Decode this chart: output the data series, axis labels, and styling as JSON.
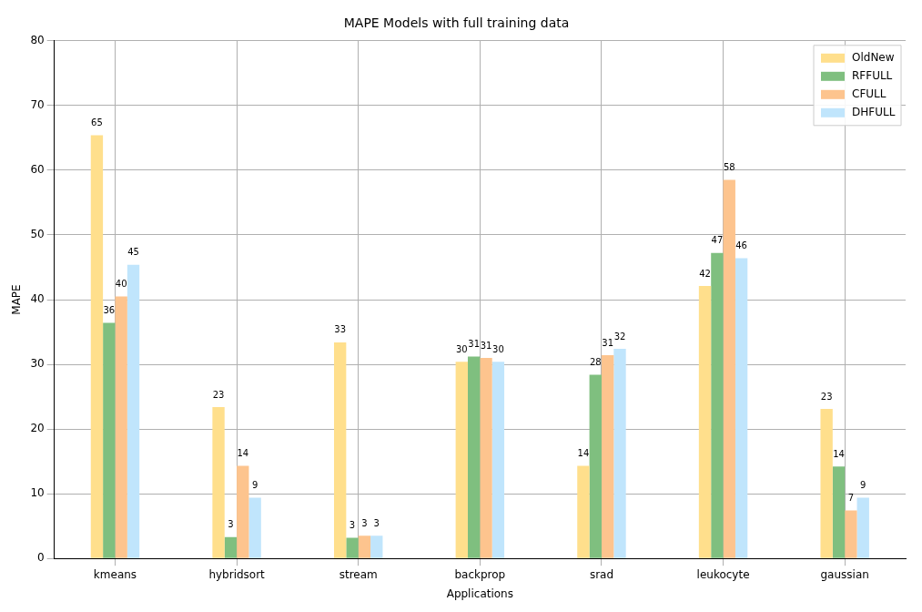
{
  "chart_data": {
    "type": "bar",
    "title": "MAPE Models with full training data",
    "xlabel": "Applications",
    "ylabel": "MAPE",
    "categories": [
      "kmeans",
      "hybridsort",
      "stream",
      "backprop",
      "srad",
      "leukocyte",
      "gaussian"
    ],
    "series": [
      {
        "name": "OldNew",
        "color": "#ffdf8c",
        "values": [
          65.4,
          23.4,
          33.4,
          30.4,
          14.3,
          42.1,
          23.1
        ],
        "value_labels": [
          "65",
          "23",
          "33",
          "30",
          "14",
          "42",
          "23"
        ]
      },
      {
        "name": "RFFULL",
        "color": "#7fbf7f",
        "values": [
          36.4,
          3.3,
          3.2,
          31.2,
          28.4,
          47.2,
          14.2
        ],
        "value_labels": [
          "36",
          "3",
          "3",
          "31",
          "28",
          "47",
          "14"
        ]
      },
      {
        "name": "CFULL",
        "color": "#fdc48e",
        "values": [
          40.5,
          14.3,
          3.5,
          31.0,
          31.4,
          58.5,
          7.4
        ],
        "value_labels": [
          "40",
          "14",
          "3",
          "31",
          "31",
          "58",
          "7"
        ]
      },
      {
        "name": "DHFULL",
        "color": "#c0e5fc",
        "values": [
          45.4,
          9.4,
          3.5,
          30.4,
          32.4,
          46.4,
          9.4
        ],
        "value_labels": [
          "45",
          "9",
          "3",
          "30",
          "32",
          "46",
          "9"
        ]
      }
    ],
    "ylim": [
      0,
      80
    ],
    "yticks": [
      0,
      10,
      20,
      30,
      40,
      50,
      60,
      70,
      80
    ],
    "grid": true,
    "legend": "top right"
  }
}
